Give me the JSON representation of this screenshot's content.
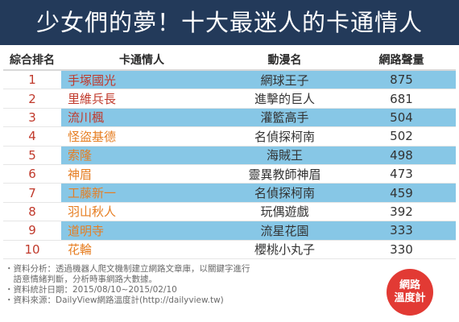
{
  "title": "少女們的夢！十大最迷人的卡通情人",
  "headers": [
    "綜合排名",
    "卡通情人",
    "動漫名",
    "網路聲量"
  ],
  "rows": [
    {
      "rank": "1",
      "character": "手塚國光",
      "anime": "網球王子",
      "volume": "875"
    },
    {
      "rank": "2",
      "character": "里維兵長",
      "anime": "進擊的巨人",
      "volume": "681"
    },
    {
      "rank": "3",
      "character": "流川楓",
      "anime": "灌籃高手",
      "volume": "504"
    },
    {
      "rank": "4",
      "character": "怪盜基德",
      "anime": "名偵探柯南",
      "volume": "502"
    },
    {
      "rank": "5",
      "character": "索隆",
      "anime": "海賊王",
      "volume": "498"
    },
    {
      "rank": "6",
      "character": "神眉",
      "anime": "靈異教師神眉",
      "volume": "473"
    },
    {
      "rank": "7",
      "character": "工藤新一",
      "anime": "名偵探柯南",
      "volume": "459"
    },
    {
      "rank": "8",
      "character": "羽山秋人",
      "anime": "玩偶遊戲",
      "volume": "392"
    },
    {
      "rank": "9",
      "character": "道明寺",
      "anime": "流星花園",
      "volume": "333"
    },
    {
      "rank": "10",
      "character": "花輪",
      "anime": "櫻桃小丸子",
      "volume": "330"
    }
  ],
  "footnotes": [
    "・資料分析：透過機器人爬文機制建立網路文章庫，以關鍵字進行",
    "　語意情緒判斷，分析時事網路大數據。",
    "・資料統計日期：2015/08/10~2015/02/10",
    "・資料來源：DailyView網路溫度計(http://dailyview.tw)"
  ],
  "logo": {
    "line1": "網路",
    "line2": "溫度計"
  },
  "colors": {
    "banner": "#233a5a",
    "band": "#87c7e6",
    "rank": "#c0392b",
    "name_red": "#c0392b",
    "name_orange": "#e67e22"
  }
}
